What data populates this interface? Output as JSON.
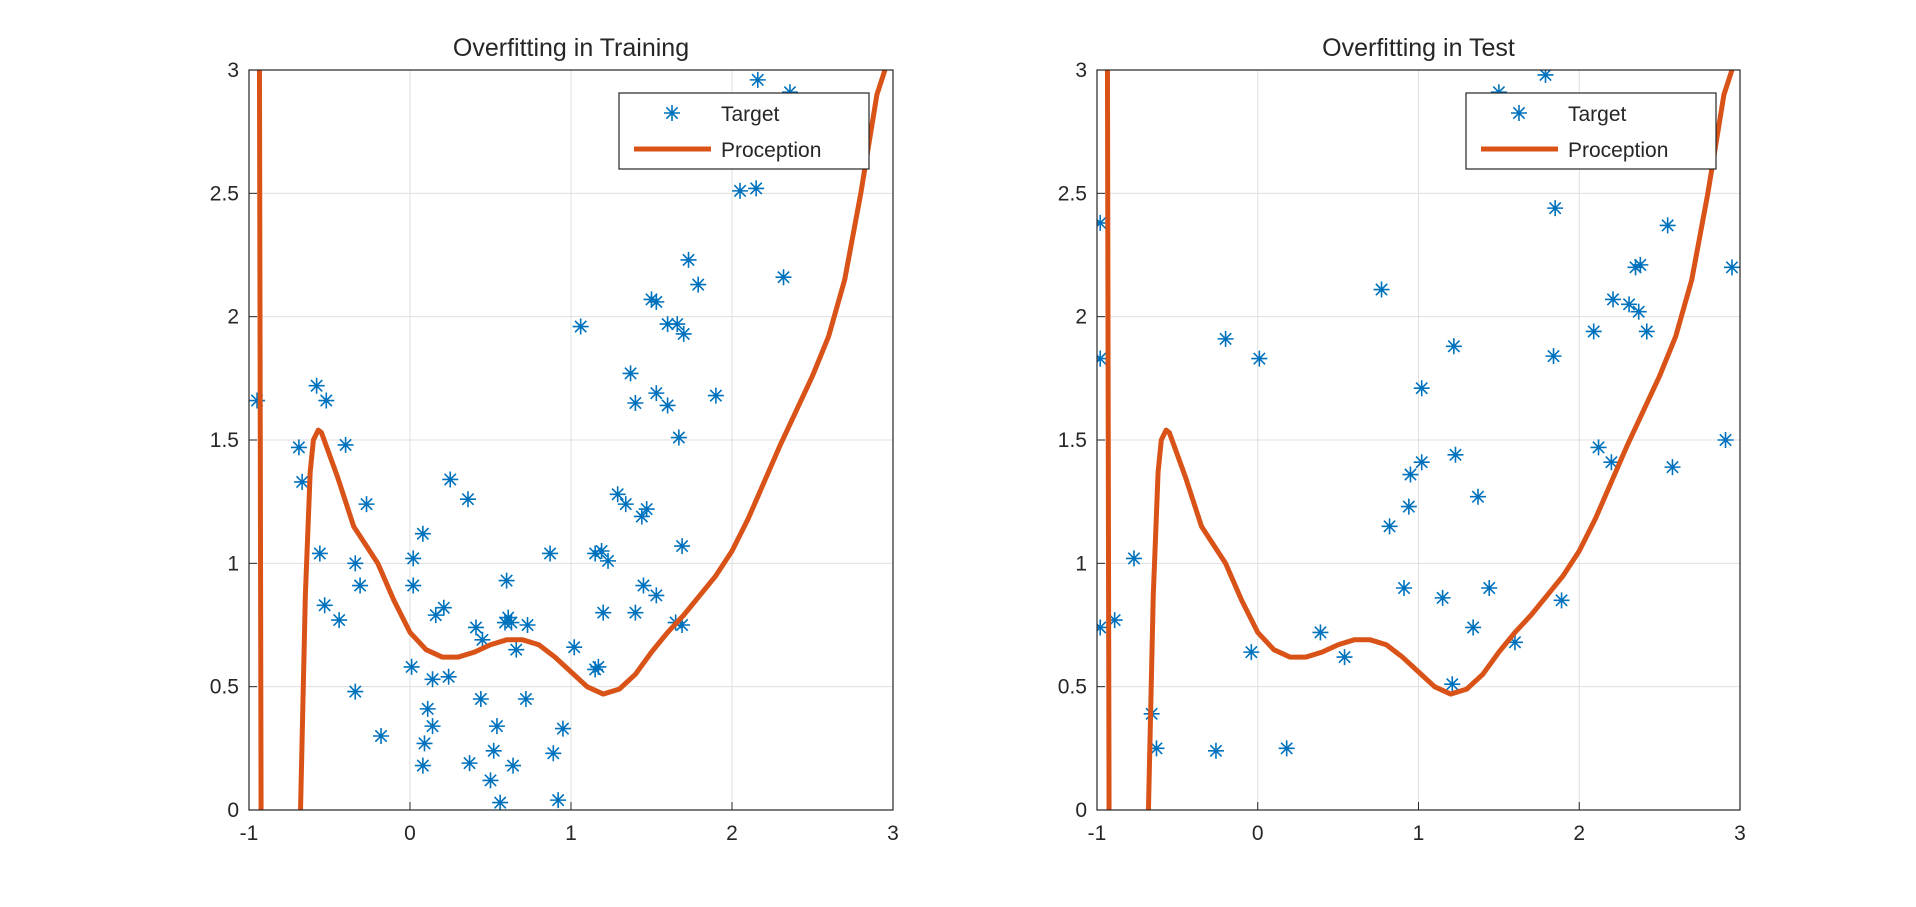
{
  "chart_data": [
    {
      "type": "line",
      "title": "Overfitting in Training",
      "xlim": [
        -1,
        3
      ],
      "xticks": [
        -1,
        0,
        1,
        2,
        3
      ],
      "ylim": [
        0,
        3
      ],
      "yticks": [
        0,
        0.5,
        1,
        1.5,
        2,
        2.5,
        3
      ],
      "grid": true,
      "legend": "northeast",
      "series": [
        {
          "name": "Target",
          "color": "#0072bd",
          "style": "markers",
          "x": [
            -0.95,
            -0.69,
            -0.67,
            -0.58,
            -0.52,
            -0.56,
            -0.53,
            -0.44,
            -0.4,
            -0.34,
            -0.31,
            -0.34,
            -0.27,
            -0.18,
            0.02,
            0.02,
            0.01,
            0.08,
            0.08,
            0.09,
            0.11,
            0.14,
            0.14,
            0.16,
            0.21,
            0.25,
            0.24,
            0.36,
            0.37,
            0.41,
            0.44,
            0.45,
            0.5,
            0.52,
            0.54,
            0.56,
            0.6,
            0.59,
            0.61,
            0.64,
            0.66,
            0.63,
            0.72,
            0.73,
            0.87,
            0.89,
            0.92,
            0.95,
            1.02,
            1.06,
            1.15,
            1.17,
            1.15,
            1.19,
            1.23,
            1.2,
            1.29,
            1.34,
            1.37,
            1.4,
            1.4,
            1.44,
            1.45,
            1.47,
            1.5,
            1.53,
            1.53,
            1.53,
            1.6,
            1.6,
            1.66,
            1.67,
            1.7,
            1.69,
            1.73,
            1.79,
            1.65,
            1.69,
            1.9,
            2.05,
            2.15,
            2.16,
            2.32,
            2.36
          ],
          "values": [
            1.66,
            1.47,
            1.33,
            1.72,
            1.66,
            1.04,
            0.83,
            0.77,
            1.48,
            1.0,
            0.91,
            0.48,
            1.24,
            0.3,
            1.02,
            0.91,
            0.58,
            1.12,
            0.18,
            0.27,
            0.41,
            0.53,
            0.34,
            0.79,
            0.82,
            1.34,
            0.54,
            1.26,
            0.19,
            0.74,
            0.45,
            0.69,
            0.12,
            0.24,
            0.34,
            0.03,
            0.93,
            0.76,
            0.78,
            0.18,
            0.65,
            0.76,
            0.45,
            0.75,
            1.04,
            0.23,
            0.04,
            0.33,
            0.66,
            1.96,
            0.57,
            0.58,
            1.04,
            1.05,
            1.01,
            0.8,
            1.28,
            1.24,
            1.77,
            1.65,
            0.8,
            1.19,
            0.91,
            1.22,
            2.07,
            2.06,
            0.87,
            1.69,
            1.97,
            1.64,
            1.97,
            1.51,
            1.93,
            1.07,
            2.23,
            2.13,
            0.76,
            0.75,
            1.68,
            2.51,
            2.52,
            2.96,
            2.16,
            2.91
          ]
        },
        {
          "name": "Proception",
          "color": "#d95319",
          "style": "line",
          "x": [
            -0.935,
            -0.93,
            -0.925,
            null,
            -0.68,
            -0.65,
            -0.62,
            -0.6,
            -0.57,
            -0.55,
            -0.45,
            -0.35,
            -0.2,
            -0.1,
            0,
            0.1,
            0.2,
            0.3,
            0.4,
            0.5,
            0.6,
            0.7,
            0.8,
            0.9,
            1.0,
            1.1,
            1.2,
            1.3,
            1.4,
            1.5,
            1.6,
            1.7,
            1.8,
            1.9,
            2.0,
            2.1,
            2.2,
            2.3,
            2.4,
            2.5,
            2.6,
            2.7,
            2.8,
            2.9,
            2.95
          ],
          "values": [
            3,
            1.5,
            0,
            null,
            0,
            0.87,
            1.37,
            1.5,
            1.54,
            1.53,
            1.35,
            1.15,
            1.0,
            0.85,
            0.72,
            0.65,
            0.62,
            0.62,
            0.64,
            0.67,
            0.69,
            0.69,
            0.67,
            0.62,
            0.56,
            0.5,
            0.47,
            0.49,
            0.55,
            0.64,
            0.72,
            0.79,
            0.87,
            0.95,
            1.05,
            1.18,
            1.33,
            1.48,
            1.62,
            1.76,
            1.92,
            2.15,
            2.5,
            2.9,
            3
          ]
        }
      ]
    },
    {
      "type": "line",
      "title": "Overfitting in Test",
      "xlim": [
        -1,
        3
      ],
      "xticks": [
        -1,
        0,
        1,
        2,
        3
      ],
      "ylim": [
        0,
        3
      ],
      "yticks": [
        0,
        0.5,
        1,
        1.5,
        2,
        2.5,
        3
      ],
      "grid": true,
      "legend": "northeast",
      "series": [
        {
          "name": "Target",
          "color": "#0072bd",
          "style": "markers",
          "x": [
            -0.98,
            -0.98,
            -0.98,
            -0.89,
            -0.77,
            -0.66,
            -0.63,
            -0.26,
            -0.2,
            -0.04,
            0.01,
            0.18,
            0.39,
            0.54,
            0.77,
            0.82,
            0.91,
            0.94,
            0.95,
            1.02,
            1.02,
            1.15,
            1.21,
            1.22,
            1.23,
            1.34,
            1.37,
            1.44,
            1.5,
            1.6,
            1.79,
            1.84,
            1.85,
            1.89,
            2.09,
            2.12,
            2.2,
            2.21,
            2.31,
            2.35,
            2.38,
            2.37,
            2.42,
            2.55,
            2.58,
            2.91,
            2.95
          ],
          "values": [
            0.74,
            2.38,
            1.83,
            0.77,
            1.02,
            0.39,
            0.25,
            0.24,
            1.91,
            0.64,
            1.83,
            0.25,
            0.72,
            0.62,
            2.11,
            1.15,
            0.9,
            1.23,
            1.36,
            1.41,
            1.71,
            0.86,
            0.51,
            1.88,
            1.44,
            0.74,
            1.27,
            0.9,
            2.91,
            0.68,
            2.98,
            1.84,
            2.44,
            0.85,
            1.94,
            1.47,
            1.41,
            2.07,
            2.05,
            2.2,
            2.21,
            2.02,
            1.94,
            2.37,
            1.39,
            1.5,
            2.2
          ]
        },
        {
          "name": "Proception",
          "color": "#d95319",
          "style": "line",
          "x": [
            -0.935,
            -0.93,
            -0.925,
            null,
            -0.68,
            -0.65,
            -0.62,
            -0.6,
            -0.57,
            -0.55,
            -0.45,
            -0.35,
            -0.2,
            -0.1,
            0,
            0.1,
            0.2,
            0.3,
            0.4,
            0.5,
            0.6,
            0.7,
            0.8,
            0.9,
            1.0,
            1.1,
            1.2,
            1.3,
            1.4,
            1.5,
            1.6,
            1.7,
            1.8,
            1.9,
            2.0,
            2.1,
            2.2,
            2.3,
            2.4,
            2.5,
            2.6,
            2.7,
            2.8,
            2.9,
            2.95
          ],
          "values": [
            3,
            1.5,
            0,
            null,
            0,
            0.87,
            1.37,
            1.5,
            1.54,
            1.53,
            1.35,
            1.15,
            1.0,
            0.85,
            0.72,
            0.65,
            0.62,
            0.62,
            0.64,
            0.67,
            0.69,
            0.69,
            0.67,
            0.62,
            0.56,
            0.5,
            0.47,
            0.49,
            0.55,
            0.64,
            0.72,
            0.79,
            0.87,
            0.95,
            1.05,
            1.18,
            1.33,
            1.48,
            1.62,
            1.76,
            1.92,
            2.15,
            2.5,
            2.9,
            3
          ]
        }
      ]
    }
  ]
}
